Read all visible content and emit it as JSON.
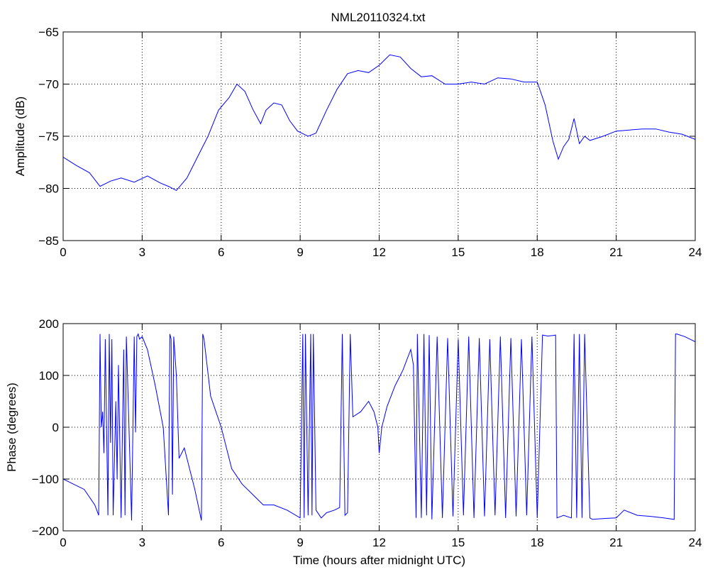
{
  "figure_title": "NML20110324.txt",
  "chart_data": [
    {
      "type": "line",
      "title": "NML20110324.txt",
      "xlabel": "",
      "ylabel": "Amplitude (dB)",
      "xlim": [
        0,
        24
      ],
      "ylim": [
        -85,
        -65
      ],
      "xticks": [
        0,
        3,
        6,
        9,
        12,
        15,
        18,
        21,
        24
      ],
      "yticks": [
        -85,
        -80,
        -75,
        -70,
        -65
      ],
      "grid": true,
      "color": "#0000ff",
      "series": [
        {
          "x": [
            0,
            0.5,
            1.0,
            1.4,
            1.8,
            2.2,
            2.7,
            3.2,
            3.7,
            4.0,
            4.3,
            4.7,
            5.1,
            5.5,
            5.9,
            6.3,
            6.6,
            6.9,
            7.2,
            7.5,
            7.7,
            8.0,
            8.3,
            8.6,
            8.9,
            9.3,
            9.6,
            10.0,
            10.4,
            10.8,
            11.2,
            11.6,
            12.0,
            12.4,
            12.8,
            13.2,
            13.6,
            14.0,
            14.5,
            15.0,
            15.5,
            16.0,
            16.5,
            17.0,
            17.5,
            18.0,
            18.3,
            18.6,
            18.8,
            19.0,
            19.2,
            19.4,
            19.6,
            19.8,
            20.0,
            20.5,
            21.0,
            21.5,
            22.0,
            22.5,
            23.0,
            23.5,
            24.0
          ],
          "y": [
            -77,
            -77.8,
            -78.5,
            -79.8,
            -79.3,
            -79.0,
            -79.4,
            -78.8,
            -79.5,
            -79.8,
            -80.2,
            -79.0,
            -77.0,
            -75.0,
            -72.5,
            -71.3,
            -70.0,
            -70.7,
            -72.4,
            -73.8,
            -72.5,
            -71.8,
            -72.0,
            -73.5,
            -74.5,
            -75.0,
            -74.7,
            -72.5,
            -70.5,
            -69.0,
            -68.7,
            -68.9,
            -68.2,
            -67.2,
            -67.4,
            -68.5,
            -69.3,
            -69.2,
            -70.0,
            -70.0,
            -69.8,
            -70.0,
            -69.4,
            -69.5,
            -69.8,
            -69.8,
            -72.0,
            -75.5,
            -77.2,
            -76.0,
            -75.3,
            -73.3,
            -75.7,
            -75.0,
            -75.4,
            -75.0,
            -74.5,
            -74.4,
            -74.3,
            -74.3,
            -74.6,
            -74.8,
            -75.3
          ]
        }
      ]
    },
    {
      "type": "line",
      "title": "",
      "xlabel": "Time (hours after midnight UTC)",
      "ylabel": "Phase (degrees)",
      "xlim": [
        0,
        24
      ],
      "ylim": [
        -200,
        200
      ],
      "xticks": [
        0,
        3,
        6,
        9,
        12,
        15,
        18,
        21,
        24
      ],
      "yticks": [
        -200,
        -100,
        0,
        100,
        200
      ],
      "grid": true,
      "color": "#0000ff",
      "series": [
        {
          "x": [
            0,
            0.4,
            0.8,
            1.2,
            1.35,
            1.4,
            1.45,
            1.5,
            1.55,
            1.6,
            1.7,
            1.75,
            1.8,
            1.85,
            1.9,
            2.0,
            2.05,
            2.1,
            2.2,
            2.3,
            2.35,
            2.4,
            2.5,
            2.6,
            2.7,
            2.75,
            2.8,
            2.85,
            2.9,
            3.0,
            3.2,
            3.5,
            3.8,
            4.0,
            4.05,
            4.1,
            4.15,
            4.2,
            4.3,
            4.4,
            4.6,
            5.0,
            5.25,
            5.3,
            5.35,
            5.6,
            6.0,
            6.4,
            6.8,
            7.2,
            7.6,
            8.0,
            8.5,
            9.0,
            9.1,
            9.15,
            9.2,
            9.3,
            9.4,
            9.45,
            9.5,
            9.6,
            9.8,
            10.0,
            10.3,
            10.5,
            10.6,
            10.7,
            10.8,
            10.9,
            11.0,
            11.3,
            11.6,
            11.8,
            11.95,
            12.0,
            12.1,
            12.3,
            12.6,
            12.9,
            13.2,
            13.3,
            13.4,
            13.45,
            13.5,
            13.6,
            13.7,
            13.8,
            13.9,
            14.0,
            14.2,
            14.4,
            14.6,
            14.8,
            15.0,
            15.2,
            15.4,
            15.6,
            15.8,
            16.0,
            16.2,
            16.4,
            16.6,
            16.8,
            17.0,
            17.2,
            17.4,
            17.6,
            17.8,
            18.0,
            18.2,
            18.4,
            18.6,
            18.7,
            18.75,
            19.0,
            19.3,
            19.4,
            19.5,
            19.6,
            19.7,
            19.8,
            20.0,
            20.1,
            20.3,
            20.6,
            21.0,
            21.3,
            21.8,
            22.3,
            22.8,
            23.2,
            23.25,
            23.3,
            23.6,
            24.0
          ],
          "y": [
            -100,
            -110,
            -120,
            -150,
            -170,
            180,
            0,
            30,
            -50,
            170,
            -170,
            180,
            -30,
            170,
            -170,
            50,
            -100,
            120,
            -175,
            150,
            -170,
            175,
            0,
            -180,
            175,
            -10,
            175,
            180,
            170,
            175,
            150,
            80,
            0,
            -170,
            180,
            170,
            -130,
            175,
            100,
            -60,
            -40,
            -120,
            -180,
            180,
            170,
            60,
            0,
            -80,
            -110,
            -130,
            -150,
            -150,
            -160,
            -175,
            180,
            -175,
            180,
            -170,
            180,
            -170,
            180,
            -160,
            -175,
            -165,
            -160,
            -155,
            180,
            -170,
            -165,
            180,
            20,
            30,
            50,
            30,
            0,
            -50,
            0,
            40,
            80,
            110,
            150,
            120,
            -175,
            180,
            60,
            -175,
            180,
            -170,
            178,
            -178,
            175,
            -175,
            172,
            -172,
            170,
            -170,
            175,
            -175,
            172,
            -172,
            170,
            -170,
            175,
            -175,
            172,
            -172,
            170,
            -170,
            175,
            -175,
            178,
            176,
            177,
            178,
            -175,
            -170,
            -175,
            180,
            -175,
            180,
            -175,
            180,
            -175,
            -178,
            -177,
            -176,
            -175,
            -160,
            -170,
            -172,
            -175,
            -178,
            180,
            180,
            175,
            165
          ]
        }
      ]
    }
  ]
}
